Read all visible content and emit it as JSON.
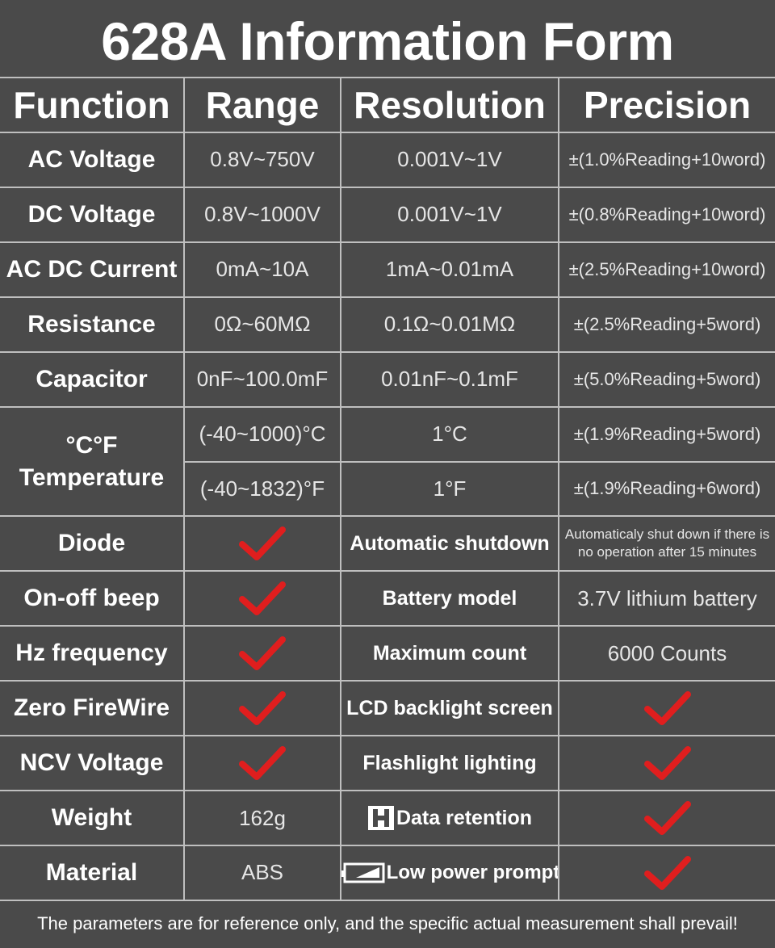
{
  "title": "628A Information Form",
  "headers": [
    "Function",
    "Range",
    "Resolution",
    "Precision"
  ],
  "rows": [
    {
      "function": "AC Voltage",
      "range": "0.8V~750V",
      "resolution": "0.001V~1V",
      "precision": "±(1.0%Reading+10word)"
    },
    {
      "function": "DC Voltage",
      "range": "0.8V~1000V",
      "resolution": "0.001V~1V",
      "precision": "±(0.8%Reading+10word)"
    },
    {
      "function": "AC DC Current",
      "range": "0mA~10A",
      "resolution": "1mA~0.01mA",
      "precision": "±(2.5%Reading+10word)"
    },
    {
      "function": "Resistance",
      "range": "0Ω~60MΩ",
      "resolution": "0.1Ω~0.01MΩ",
      "precision": "±(2.5%Reading+5word)"
    },
    {
      "function": "Capacitor",
      "range": "0nF~100.0mF",
      "resolution": "0.01nF~0.1mF",
      "precision": "±(5.0%Reading+5word)"
    }
  ],
  "temperature": {
    "label_line1": "°C°F",
    "label_line2": "Temperature",
    "c_range": "(-40~1000)°C",
    "c_resolution": "1°C",
    "c_precision": "±(1.9%Reading+5word)",
    "f_range": "(-40~1832)°F",
    "f_resolution": "1°F",
    "f_precision": "±(1.9%Reading+6word)"
  },
  "features": [
    {
      "left": "Diode",
      "left_value": "check",
      "right": "Automatic shutdown",
      "right_value": "Automaticaly shut down if there is no operation after 15 minutes"
    },
    {
      "left": "On-off beep",
      "left_value": "check",
      "right": "Battery model",
      "right_value": "3.7V lithium battery"
    },
    {
      "left": "Hz frequency",
      "left_value": "check",
      "right": "Maximum count",
      "right_value": "6000 Counts"
    },
    {
      "left": "Zero FireWire",
      "left_value": "check",
      "right": "LCD backlight screen",
      "right_value": "check"
    },
    {
      "left": "NCV Voltage",
      "left_value": "check",
      "right": "Flashlight lighting",
      "right_value": "check"
    },
    {
      "left": "Weight",
      "left_value": "162g",
      "right": "Data retention",
      "right_icon": "hold-h-icon",
      "right_value": "check"
    },
    {
      "left": "Material",
      "left_value": "ABS",
      "right": "Low power prompt",
      "right_icon": "low-battery-icon",
      "right_value": "check"
    }
  ],
  "footer": "The parameters are for reference only, and the specific actual measurement shall prevail!",
  "colors": {
    "background": "#4a4a4a",
    "grid": "#bfbfbf",
    "check": "#e01e1e",
    "text": "#ffffff"
  }
}
